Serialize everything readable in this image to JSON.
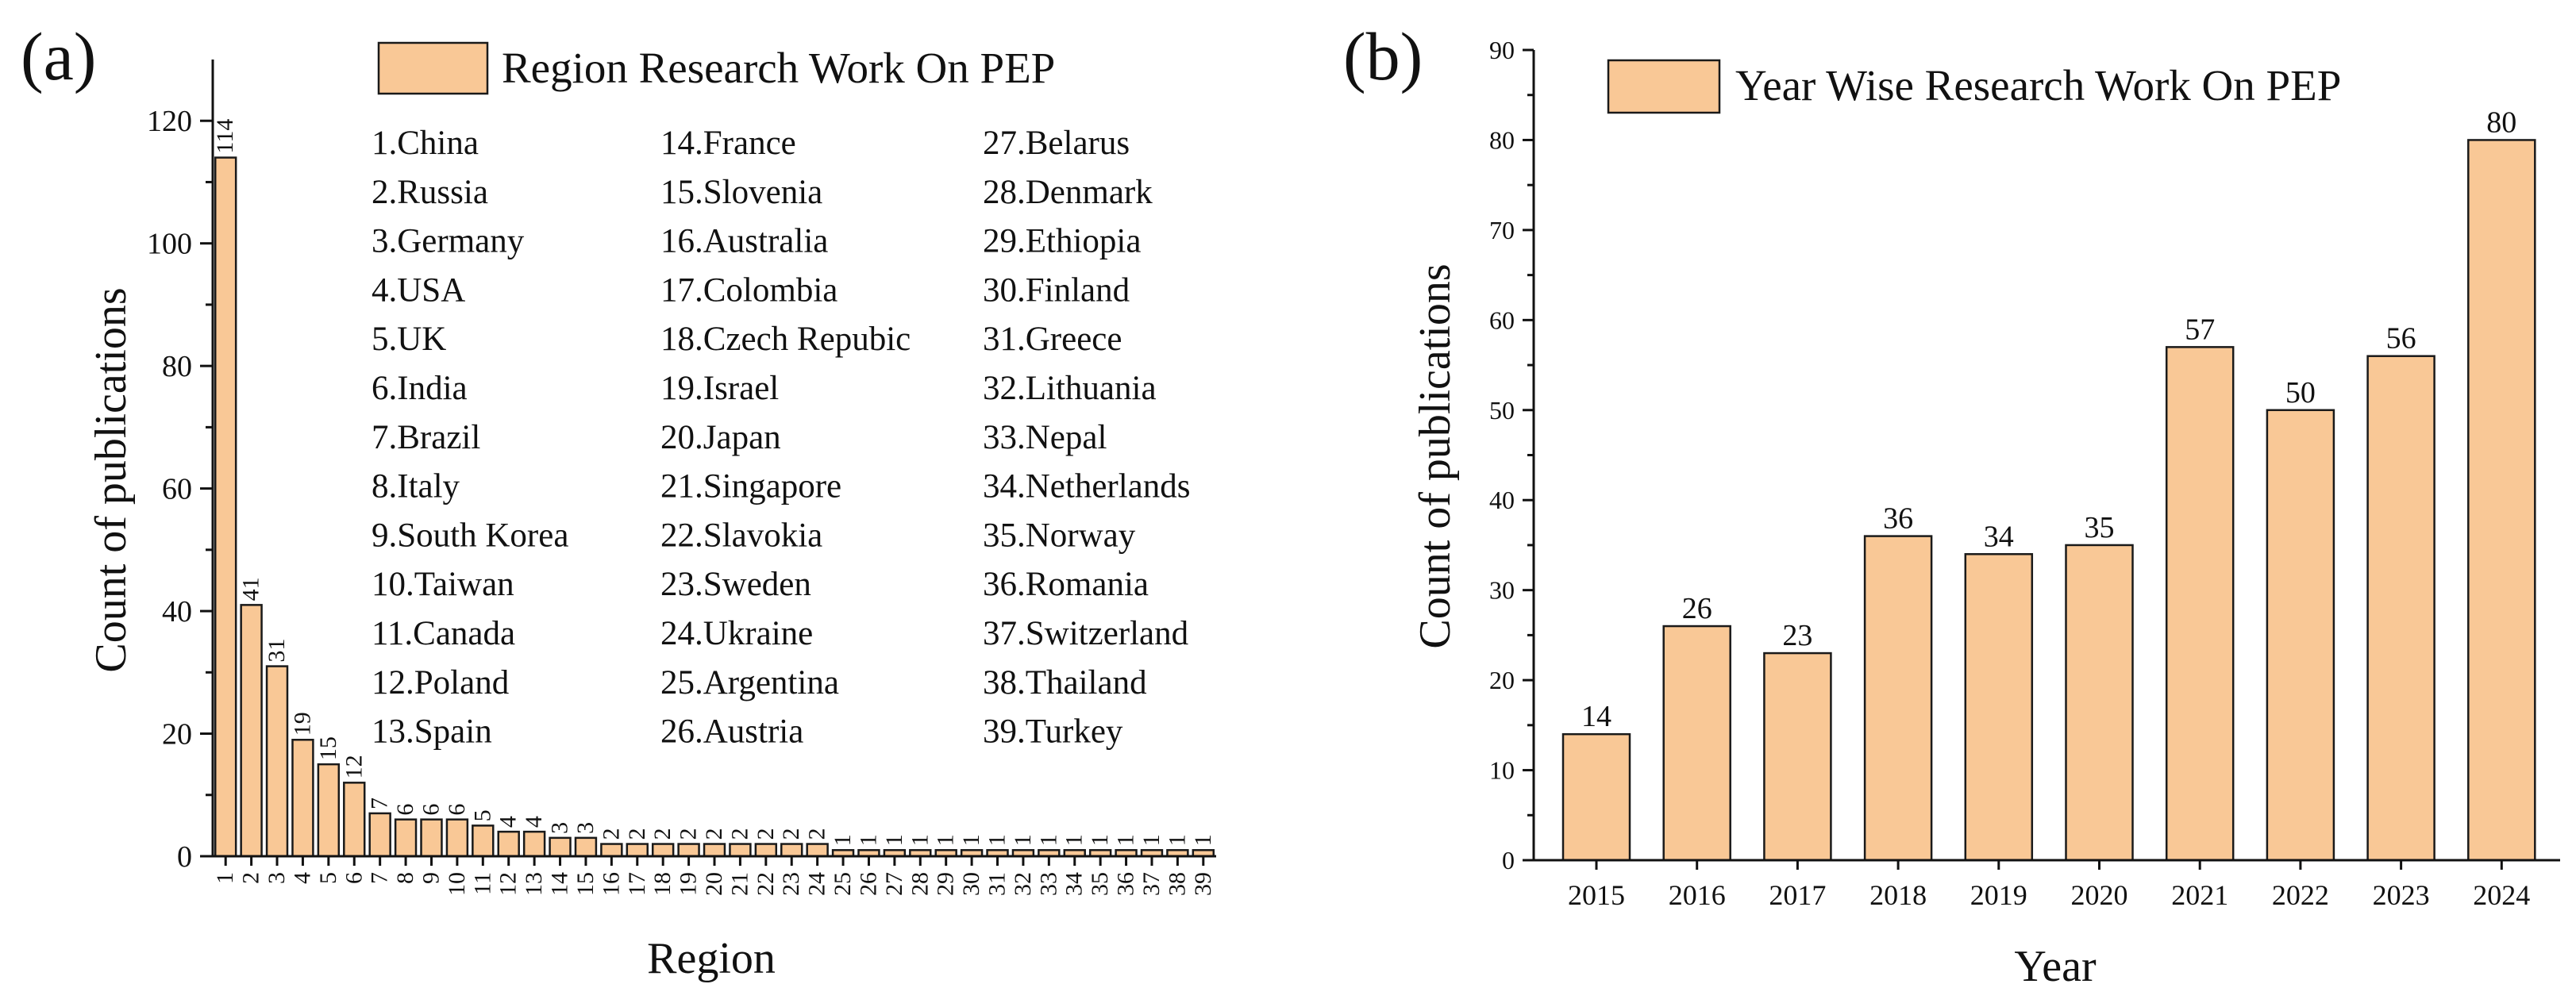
{
  "chart_data": [
    {
      "panel_label": "(a)",
      "type": "bar",
      "title": "",
      "xlabel": "Region",
      "ylabel": "Count of publications",
      "ylim": [
        0,
        130
      ],
      "yticks": [
        0,
        20,
        40,
        60,
        80,
        100,
        120
      ],
      "grid": false,
      "bar_color": "#f9c896",
      "legend": {
        "label": "Region Research Work On PEP",
        "placement": "top-right"
      },
      "categories": [
        "1",
        "2",
        "3",
        "4",
        "5",
        "6",
        "7",
        "8",
        "9",
        "10",
        "11",
        "12",
        "13",
        "14",
        "15",
        "16",
        "17",
        "18",
        "19",
        "20",
        "21",
        "22",
        "23",
        "24",
        "25",
        "26",
        "27",
        "28",
        "29",
        "30",
        "31",
        "32",
        "33",
        "34",
        "35",
        "36",
        "37",
        "38",
        "39"
      ],
      "values": [
        114,
        41,
        31,
        19,
        15,
        12,
        7,
        6,
        6,
        6,
        5,
        4,
        4,
        3,
        3,
        2,
        2,
        2,
        2,
        2,
        2,
        2,
        2,
        2,
        1,
        1,
        1,
        1,
        1,
        1,
        1,
        1,
        1,
        1,
        1,
        1,
        1,
        1,
        1
      ],
      "region_key": [
        [
          "1.China",
          "2.Russia",
          "3.Germany",
          "4.USA",
          "5.UK",
          "6.India",
          "7.Brazil",
          "8.Italy",
          "9.South Korea",
          "10.Taiwan",
          "11.Canada",
          "12.Poland",
          "13.Spain"
        ],
        [
          "14.France",
          "15.Slovenia",
          "16.Australia",
          "17.Colombia",
          "18.Czech Repubic",
          "19.Israel",
          "20.Japan",
          "21.Singapore",
          "22.Slavokia",
          "23.Sweden",
          "24.Ukraine",
          "25.Argentina",
          "26.Austria"
        ],
        [
          "27.Belarus",
          "28.Denmark",
          "29.Ethiopia",
          "30.Finland",
          "31.Greece",
          "32.Lithuania",
          "33.Nepal",
          "34.Netherlands",
          "35.Norway",
          "36.Romania",
          "37.Switzerland",
          "38.Thailand",
          "39.Turkey"
        ]
      ]
    },
    {
      "panel_label": "(b)",
      "type": "bar",
      "title": "",
      "xlabel": "Year",
      "ylabel": "Count of publications",
      "ylim": [
        0,
        90
      ],
      "yticks": [
        0,
        10,
        20,
        30,
        40,
        50,
        60,
        70,
        80,
        90
      ],
      "grid": false,
      "bar_color": "#f9c896",
      "legend": {
        "label": "Year Wise Research Work On PEP",
        "placement": "top-left"
      },
      "categories": [
        "2015",
        "2016",
        "2017",
        "2018",
        "2019",
        "2020",
        "2021",
        "2022",
        "2023",
        "2024"
      ],
      "values": [
        14,
        26,
        23,
        36,
        34,
        35,
        57,
        50,
        56,
        80
      ]
    }
  ]
}
